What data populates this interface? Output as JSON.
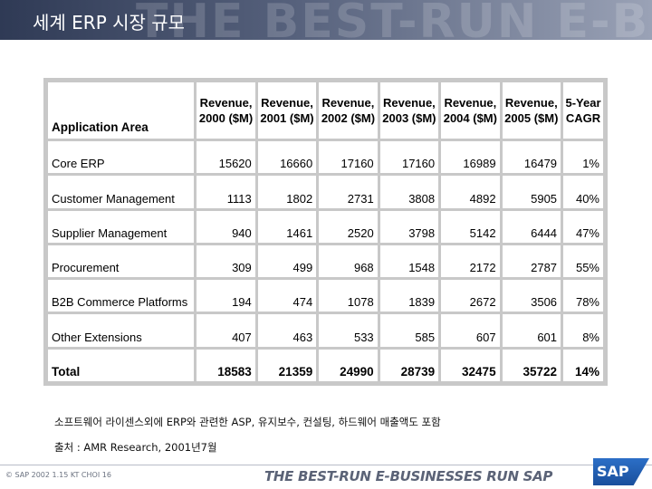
{
  "header": {
    "title": "세계 ERP 시장 규모",
    "watermark": "THE BEST-RUN E-BUS"
  },
  "table": {
    "headers": [
      "Application Area",
      "Revenue, 2000 ($M)",
      "Revenue, 2001 ($M)",
      "Revenue, 2002 ($M)",
      "Revenue, 2003 ($M)",
      "Revenue, 2004 ($M)",
      "Revenue, 2005 ($M)",
      "5-Year CAGR"
    ],
    "header_lines": [
      [
        "Application Area"
      ],
      [
        "Revenue,",
        "2000 ($M)"
      ],
      [
        "Revenue,",
        "2001 ($M)"
      ],
      [
        "Revenue,",
        "2002 ($M)"
      ],
      [
        "Revenue,",
        "2003 ($M)"
      ],
      [
        "Revenue,",
        "2004 ($M)"
      ],
      [
        "Revenue,",
        "2005 ($M)"
      ],
      [
        "5-Year",
        "CAGR"
      ]
    ],
    "rows": [
      [
        "Core ERP",
        "15620",
        "16660",
        "17160",
        "17160",
        "16989",
        "16479",
        "1%"
      ],
      [
        "Customer Management",
        "1113",
        "1802",
        "2731",
        "3808",
        "4892",
        "5905",
        "40%"
      ],
      [
        "Supplier Management",
        "940",
        "1461",
        "2520",
        "3798",
        "5142",
        "6444",
        "47%"
      ],
      [
        "Procurement",
        "309",
        "499",
        "968",
        "1548",
        "2172",
        "2787",
        "55%"
      ],
      [
        "B2B Commerce Platforms",
        "194",
        "474",
        "1078",
        "1839",
        "2672",
        "3506",
        "78%"
      ],
      [
        "Other Extensions",
        "407",
        "463",
        "533",
        "585",
        "607",
        "601",
        "8%"
      ]
    ],
    "total": [
      "Total",
      "18583",
      "21359",
      "24990",
      "28739",
      "32475",
      "35722",
      "14%"
    ]
  },
  "notes": {
    "main": "소프트웨어 라이센스외에 ERP와 관련한 ASP, 유지보수, 컨설팅, 하드웨어 매출액도 포함",
    "source": "출처 : AMR Research, 2001년7월"
  },
  "footer": {
    "copyright": "© SAP 2002 1.15 KT CHOI 16",
    "tagline": "THE BEST-RUN E-BUSINESSES RUN SAP",
    "logo": "SAP"
  }
}
